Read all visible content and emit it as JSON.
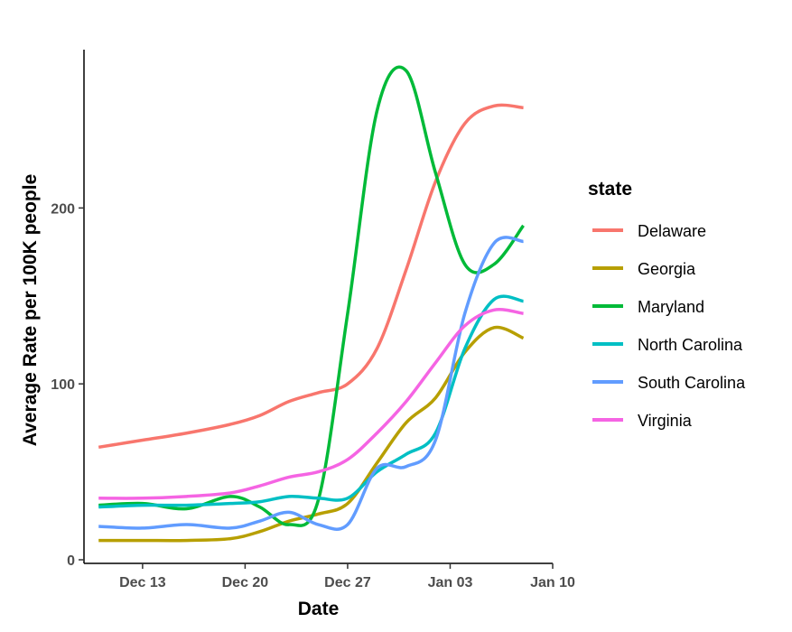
{
  "chart_data": {
    "type": "line",
    "title": "",
    "xlabel": "Date",
    "ylabel": "Average Rate per 100K people",
    "x_ticks": [
      "Dec 13",
      "Dec 20",
      "Dec 27",
      "Jan 03",
      "Jan 10"
    ],
    "y_ticks": [
      "0",
      "100",
      "200"
    ],
    "x_range": [
      "2020-12-09",
      "2021-01-10"
    ],
    "y_range": [
      0,
      290
    ],
    "grid": false,
    "legend": {
      "title": "state",
      "position": "right"
    },
    "x": [
      "2020-12-10",
      "2020-12-13",
      "2020-12-16",
      "2020-12-19",
      "2020-12-21",
      "2020-12-23",
      "2020-12-25",
      "2020-12-27",
      "2020-12-29",
      "2020-12-31",
      "2021-01-02",
      "2021-01-04",
      "2021-01-06",
      "2021-01-08"
    ],
    "series": [
      {
        "name": "Delaware",
        "color": "#F8766D",
        "values": [
          64,
          68,
          72,
          77,
          82,
          90,
          95,
          100,
          120,
          165,
          215,
          248,
          258,
          257
        ]
      },
      {
        "name": "Georgia",
        "color": "#B79F00",
        "values": [
          11,
          11,
          11,
          12,
          16,
          22,
          26,
          32,
          55,
          78,
          92,
          118,
          132,
          126
        ]
      },
      {
        "name": "Maryland",
        "color": "#00BA38",
        "values": [
          31,
          32,
          29,
          36,
          30,
          20,
          34,
          140,
          255,
          278,
          220,
          168,
          168,
          190
        ]
      },
      {
        "name": "North Carolina",
        "color": "#00BFC4",
        "values": [
          30,
          31,
          31,
          32,
          33,
          36,
          35,
          35,
          50,
          60,
          72,
          120,
          148,
          147
        ]
      },
      {
        "name": "South Carolina",
        "color": "#619CFF",
        "values": [
          19,
          18,
          20,
          18,
          22,
          27,
          20,
          20,
          52,
          53,
          68,
          140,
          180,
          181
        ]
      },
      {
        "name": "Virginia",
        "color": "#F564E3",
        "values": [
          35,
          35,
          36,
          38,
          42,
          47,
          50,
          57,
          72,
          90,
          112,
          133,
          142,
          140
        ]
      }
    ]
  }
}
